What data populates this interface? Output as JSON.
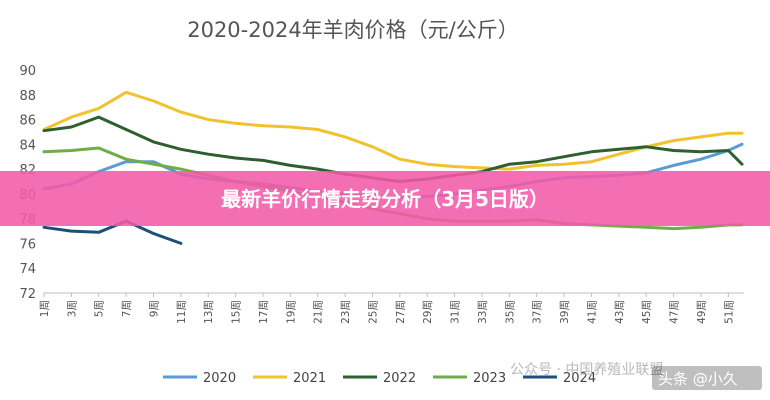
{
  "overlay": {
    "banner_text": "最新羊价行情走势分析（3月5日版）",
    "banner_color": "#f25aa8",
    "watermark_left": "公众号 · 中国养殖业联盟",
    "watermark_right": "头条 @小久"
  },
  "chart_data": {
    "type": "line",
    "title": "2020-2024年羊肉价格（元/公斤）",
    "xlabel": "",
    "ylabel": "",
    "ylim": [
      72,
      90
    ],
    "yticks": [
      72,
      74,
      76,
      78,
      80,
      82,
      84,
      86,
      88,
      90
    ],
    "xticks": [
      "1周",
      "3周",
      "5周",
      "7周",
      "9周",
      "11周",
      "13周",
      "15周",
      "17周",
      "19周",
      "21周",
      "23周",
      "25周",
      "27周",
      "29周",
      "31周",
      "33周",
      "35周",
      "37周",
      "39周",
      "41周",
      "43周",
      "45周",
      "47周",
      "49周",
      "51周"
    ],
    "grid": false,
    "legend": "bottom",
    "x": [
      1,
      3,
      5,
      7,
      9,
      11,
      13,
      15,
      17,
      19,
      21,
      23,
      25,
      27,
      29,
      31,
      33,
      35,
      37,
      39,
      41,
      43,
      45,
      47,
      49,
      51,
      52
    ],
    "series": [
      {
        "name": "2020",
        "color": "#5b9bd5",
        "values": [
          80.4,
          80.8,
          81.8,
          82.6,
          82.6,
          81.6,
          81.2,
          81.0,
          80.8,
          80.5,
          80.2,
          80.0,
          79.8,
          79.7,
          79.8,
          80.0,
          80.3,
          80.6,
          81.0,
          81.3,
          81.4,
          81.5,
          81.7,
          82.3,
          82.8,
          83.5,
          84.0
        ]
      },
      {
        "name": "2021",
        "color": "#f2c12e",
        "values": [
          85.2,
          86.2,
          86.9,
          88.2,
          87.5,
          86.6,
          86.0,
          85.7,
          85.5,
          85.4,
          85.2,
          84.6,
          83.8,
          82.8,
          82.4,
          82.2,
          82.1,
          82.0,
          82.3,
          82.4,
          82.6,
          83.2,
          83.8,
          84.3,
          84.6,
          84.9,
          84.9
        ]
      },
      {
        "name": "2022",
        "color": "#2e5f2f",
        "values": [
          85.1,
          85.4,
          86.2,
          85.2,
          84.2,
          83.6,
          83.2,
          82.9,
          82.7,
          82.3,
          82.0,
          81.6,
          81.3,
          81.0,
          81.2,
          81.5,
          81.8,
          82.4,
          82.6,
          83.0,
          83.4,
          83.6,
          83.8,
          83.5,
          83.4,
          83.5,
          82.4
        ]
      },
      {
        "name": "2023",
        "color": "#70ad47",
        "values": [
          83.4,
          83.5,
          83.7,
          82.8,
          82.4,
          82.0,
          81.5,
          81.0,
          80.6,
          80.2,
          79.8,
          79.3,
          78.8,
          78.4,
          78.0,
          77.8,
          77.8,
          77.8,
          77.9,
          77.6,
          77.5,
          77.4,
          77.3,
          77.2,
          77.3,
          77.5,
          77.5
        ]
      },
      {
        "name": "2024",
        "color": "#1f4e79",
        "values": [
          77.3,
          77.0,
          76.9,
          77.8,
          76.8,
          76.0,
          null,
          null,
          null,
          null,
          null,
          null,
          null,
          null,
          null,
          null,
          null,
          null,
          null,
          null,
          null,
          null,
          null,
          null,
          null,
          null,
          null
        ]
      }
    ]
  }
}
